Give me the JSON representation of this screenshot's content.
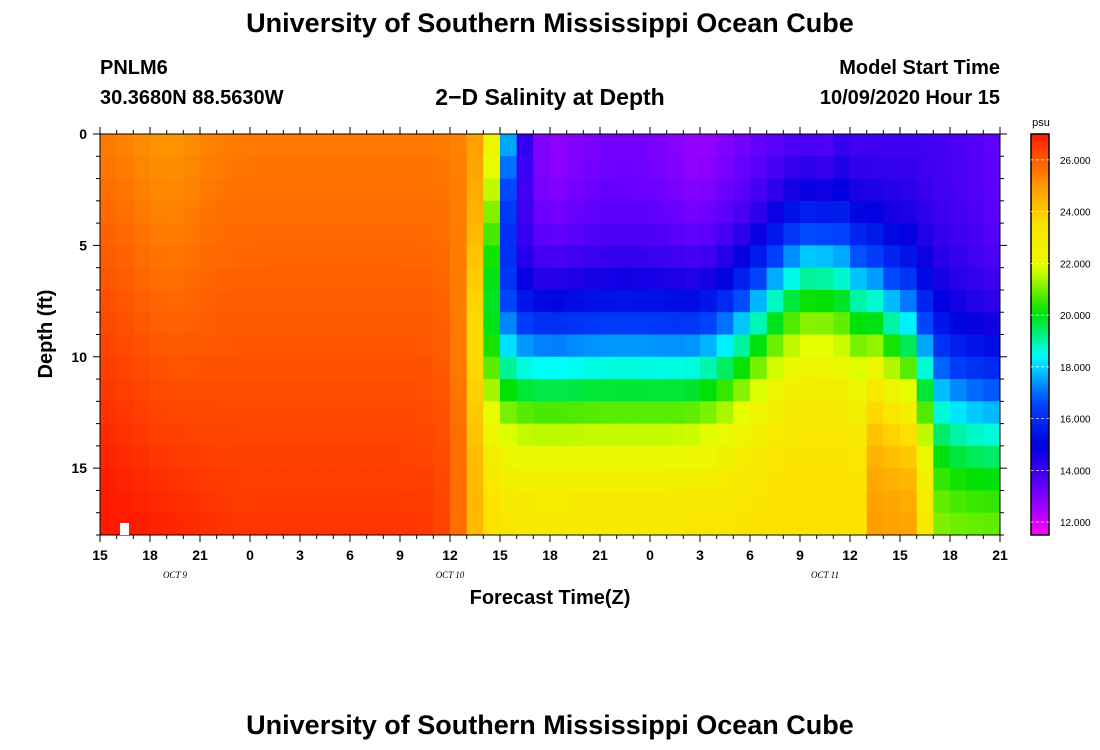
{
  "page": {
    "title_top": "University of Southern Mississippi Ocean Cube",
    "title_bottom": "University of Southern Mississippi Ocean Cube",
    "station": "PNLM6",
    "coords": "30.3680N 88.5630W",
    "plot_title": "2−D Salinity at Depth",
    "model_start_label": "Model Start Time",
    "model_start_value": "10/09/2020 Hour 15"
  },
  "colors": {
    "background": "#ffffff",
    "colormap": [
      "#ff1a00",
      "#ff8800",
      "#ffe000",
      "#e6ff00",
      "#00e000",
      "#00ffff",
      "#0048ff",
      "#0000e0",
      "#6a00ff",
      "#ff00ff"
    ]
  },
  "chart_data": {
    "type": "heatmap",
    "title": "2−D Salinity at Depth",
    "xlabel": "Forecast Time(Z)",
    "ylabel": "Depth (ft)",
    "x_ticks": [
      "15",
      "18",
      "21",
      "0",
      "3",
      "6",
      "9",
      "12",
      "15",
      "18",
      "21",
      "0",
      "3",
      "6",
      "9",
      "12",
      "15",
      "18",
      "21"
    ],
    "x_range_hours": [
      0,
      54
    ],
    "date_labels": [
      {
        "text": "OCT 9",
        "hour": 4.5
      },
      {
        "text": "OCT 10",
        "hour": 21
      },
      {
        "text": "OCT 11",
        "hour": 43.5
      }
    ],
    "y_ticks": [
      0,
      5,
      10,
      15
    ],
    "y_range_ft": [
      0,
      18
    ],
    "colorbar": {
      "unit": "psu",
      "min": 11.5,
      "max": 27.0,
      "ticks": [
        "26.000",
        "24.000",
        "22.000",
        "20.000",
        "18.000",
        "16.000",
        "14.000",
        "12.000"
      ],
      "tick_values": [
        26,
        24,
        22,
        20,
        18,
        16,
        14,
        12
      ]
    },
    "grid_x_hours": [
      0,
      1,
      2,
      3,
      4,
      5,
      6,
      7,
      8,
      9,
      10,
      11,
      12,
      13,
      14,
      15,
      16,
      17,
      18,
      19,
      20,
      21,
      22,
      23,
      24,
      25,
      26,
      27,
      28,
      29,
      30,
      31,
      32,
      33,
      34,
      35,
      36,
      37,
      38,
      39,
      40,
      41,
      42,
      43,
      44,
      45,
      46,
      47,
      48,
      49,
      50,
      51,
      52,
      53,
      54
    ],
    "grid_y_ft": [
      0,
      1,
      2,
      3,
      4,
      5,
      6,
      7,
      8,
      9,
      10,
      11,
      12,
      13,
      14,
      15,
      16,
      17,
      18
    ],
    "salinity_model": {
      "description": "Values are a reconstruction of the salinity field in psu over forecast hour and depth",
      "early_surface_psu": 25.5,
      "early_bottom_psu": 26.6,
      "front_hour": 23.5,
      "late_surface_psu": 12.5,
      "late_bottom_psu": 23.5
    }
  }
}
